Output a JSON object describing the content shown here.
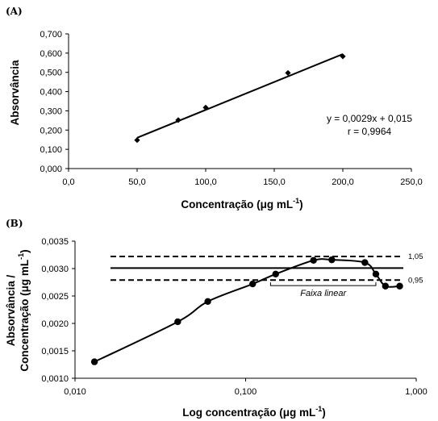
{
  "chart_data": [
    {
      "panel_label": "(A)",
      "type": "scatter",
      "x": [
        50.0,
        80.0,
        100.0,
        160.0,
        200.0
      ],
      "y": [
        0.148,
        0.252,
        0.317,
        0.497,
        0.583
      ],
      "trendline": {
        "slope": 0.0029,
        "intercept": 0.015,
        "x_range": [
          50.0,
          200.0
        ]
      },
      "annotation_lines": [
        "y = 0,0029x + 0,015",
        "r = 0,9964"
      ],
      "xlabel": "Concentração (μg mL",
      "xlabel_sup": "-1",
      "xlabel_tail": ")",
      "ylabel": "Absorvância",
      "xlim": [
        0.0,
        250.0
      ],
      "ylim": [
        0.0,
        0.7
      ],
      "xticks": [
        0,
        50,
        100,
        150,
        200,
        250
      ],
      "xtick_labels": [
        "0,0",
        "50,0",
        "100,0",
        "150,0",
        "200,0",
        "250,0"
      ],
      "yticks": [
        0.0,
        0.1,
        0.2,
        0.3,
        0.4,
        0.5,
        0.6,
        0.7
      ],
      "ytick_labels": [
        "0,000",
        "0,100",
        "0,200",
        "0,300",
        "0,400",
        "0,500",
        "0,600",
        "0,700"
      ],
      "marker": "diamond",
      "grid": false
    },
    {
      "panel_label": "(B)",
      "type": "line",
      "x_scale": "log",
      "x": [
        0.013,
        0.04,
        0.06,
        0.11,
        0.15,
        0.25,
        0.32,
        0.5,
        0.58,
        0.66,
        0.8
      ],
      "y": [
        0.0013,
        0.00203,
        0.0024,
        0.00272,
        0.0029,
        0.00315,
        0.00316,
        0.00311,
        0.0029,
        0.00268,
        0.00268
      ],
      "reference_lines": [
        {
          "y": 0.00322,
          "style": "dashed",
          "label": "1,05"
        },
        {
          "y": 0.00301,
          "style": "solid",
          "label": ""
        },
        {
          "y": 0.00279,
          "style": "dashed",
          "label": "0,95"
        }
      ],
      "range_annotation": {
        "label": "Faixa linear",
        "x_start": 0.14,
        "x_end": 0.58
      },
      "xlabel": "Log concentração (μg mL",
      "xlabel_sup": "-1",
      "xlabel_tail": ")",
      "ylabel_lines": [
        "Absorvância /",
        "Concentração (μg mL"
      ],
      "ylabel_sup": "-1",
      "ylabel_tail": ")",
      "xlim": [
        0.01,
        1.0
      ],
      "ylim": [
        0.001,
        0.0035
      ],
      "xticks": [
        0.01,
        0.1,
        1.0
      ],
      "xtick_labels": [
        "0,010",
        "0,100",
        "1,000"
      ],
      "yticks": [
        0.001,
        0.0015,
        0.002,
        0.0025,
        0.003,
        0.0035
      ],
      "ytick_labels": [
        "0,0010",
        "0,0015",
        "0,0020",
        "0,0025",
        "0,0030",
        "0,0035"
      ],
      "marker": "circle",
      "grid": false
    }
  ]
}
